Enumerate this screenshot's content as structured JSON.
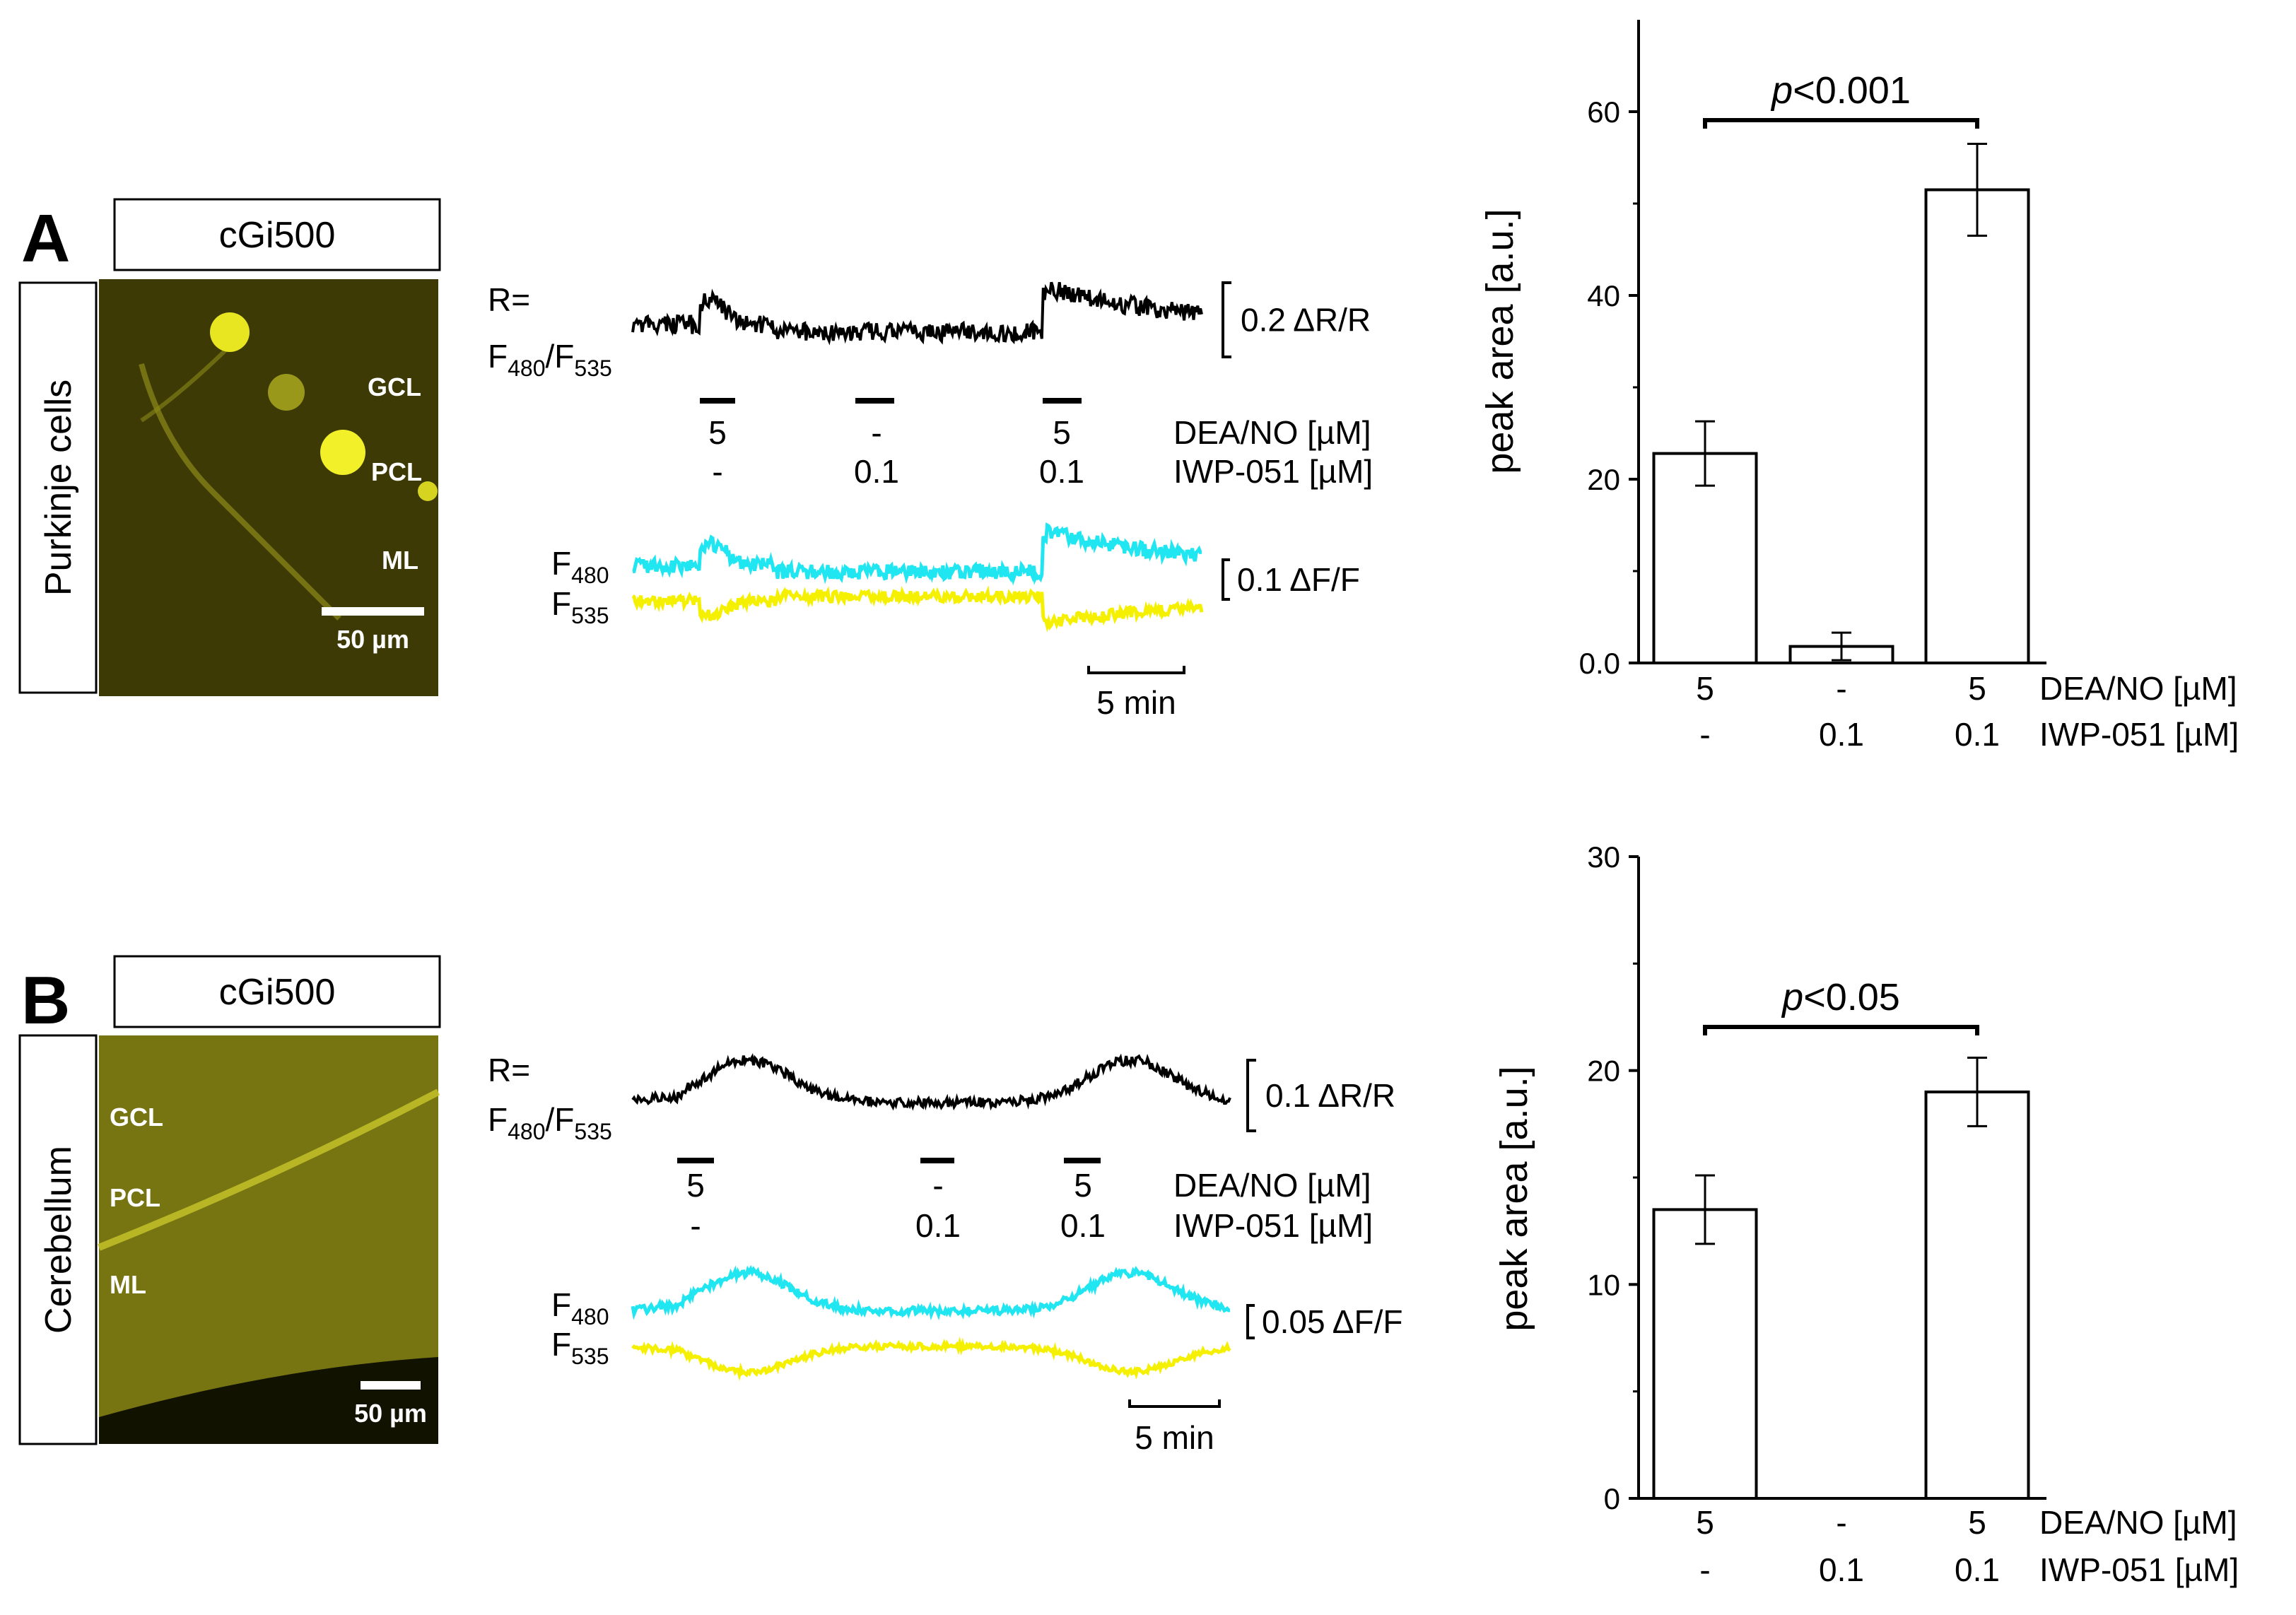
{
  "panels": [
    {
      "id": "A",
      "letter": "A",
      "image": {
        "title": "cGi500",
        "side_label": "Purkinje cells",
        "layer_labels": [
          "GCL",
          "PCL",
          "ML"
        ],
        "scale_label": "50 µm",
        "color": "#3d3a05"
      },
      "trace": {
        "ratio_label_line1": "R=",
        "ratio_label_f": "F",
        "ratio_sub_480": "480",
        "ratio_slash": "/F",
        "ratio_sub_535": "535",
        "ratio_scale": "0.2 ΔR/R",
        "row1_label": "DEA/NO [µM]",
        "row1_values": [
          "5",
          "-",
          "5"
        ],
        "row2_label": "IWP-051 [µM]",
        "row2_values": [
          "-",
          "0.1",
          "0.1"
        ],
        "fluor_f": "F",
        "fluor_sub_480": "480",
        "fluor_sub_535": "535",
        "fluor_scale": "0.1 ΔF/F",
        "time_scale": "5 min",
        "colors": {
          "ratio": "#000000",
          "cfp": "#1fe6f0",
          "yfp": "#f5f000"
        }
      },
      "chart_data": {
        "type": "bar",
        "categories": [
          "DEA/NO 5, IWP-051 -",
          "DEA/NO -, IWP-051 0.1",
          "DEA/NO 5, IWP-051 0.1"
        ],
        "values": [
          22.8,
          1.8,
          51.5
        ],
        "errors": [
          3.5,
          1.5,
          5.0
        ],
        "ylabel": "peak area [a.u.]",
        "ylim": [
          0,
          70
        ],
        "yticks": [
          0,
          20,
          40,
          60
        ],
        "ytick_labels": [
          "0.0",
          "20",
          "40",
          "60"
        ],
        "row1_label": "DEA/NO [µM]",
        "row1_values": [
          "5",
          "-",
          "5"
        ],
        "row2_label": "IWP-051 [µM]",
        "row2_values": [
          "-",
          "0.1",
          "0.1"
        ],
        "significance": {
          "between": [
            0,
            2
          ],
          "label_p": "p",
          "label_rest": "<0.001"
        }
      }
    },
    {
      "id": "B",
      "letter": "B",
      "image": {
        "title": "cGi500",
        "side_label": "Cerebellum",
        "layer_labels": [
          "GCL",
          "PCL",
          "ML"
        ],
        "scale_label": "50 µm",
        "color": "#777512"
      },
      "trace": {
        "ratio_label_line1": "R=",
        "ratio_label_f": "F",
        "ratio_sub_480": "480",
        "ratio_slash": "/F",
        "ratio_sub_535": "535",
        "ratio_scale": "0.1 ΔR/R",
        "row1_label": "DEA/NO [µM]",
        "row1_values": [
          "5",
          "-",
          "5"
        ],
        "row2_label": "IWP-051 [µM]",
        "row2_values": [
          "-",
          "0.1",
          "0.1"
        ],
        "fluor_f": "F",
        "fluor_sub_480": "480",
        "fluor_sub_535": "535",
        "fluor_scale": "0.05 ΔF/F",
        "time_scale": "5 min",
        "colors": {
          "ratio": "#000000",
          "cfp": "#1fe6f0",
          "yfp": "#f5f000"
        }
      },
      "chart_data": {
        "type": "bar",
        "categories": [
          "DEA/NO 5, IWP-051 -",
          "DEA/NO -, IWP-051 0.1",
          "DEA/NO 5, IWP-051 0.1"
        ],
        "values": [
          13.5,
          0,
          19.0
        ],
        "errors": [
          1.6,
          0,
          1.6
        ],
        "ylabel": "peak area [a.u.]",
        "ylim": [
          0,
          30
        ],
        "yticks": [
          0,
          10,
          20,
          30
        ],
        "ytick_labels": [
          "0",
          "10",
          "20",
          "30"
        ],
        "row1_label": "DEA/NO [µM]",
        "row1_values": [
          "5",
          "-",
          "5"
        ],
        "row2_label": "IWP-051 [µM]",
        "row2_values": [
          "-",
          "0.1",
          "0.1"
        ],
        "significance": {
          "between": [
            0,
            2
          ],
          "label_p": "p",
          "label_rest": "<0.05"
        }
      }
    }
  ]
}
